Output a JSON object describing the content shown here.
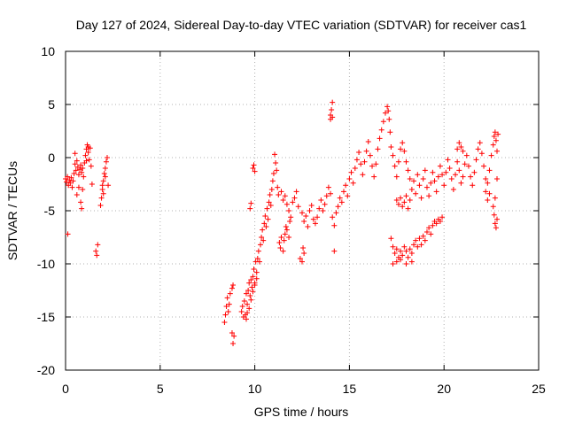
{
  "chart_data": {
    "type": "scatter",
    "title": "Day 127 of 2024, Sidereal Day-to-day VTEC variation (SDTVAR) for receiver cas1",
    "xlabel": "GPS time / hours",
    "ylabel": "SDTVAR / TECUs",
    "xlim": [
      0,
      25
    ],
    "ylim": [
      -20,
      10
    ],
    "xticks": [
      0,
      5,
      10,
      15,
      20,
      25
    ],
    "yticks": [
      -20,
      -15,
      -10,
      -5,
      0,
      5,
      10
    ],
    "grid": true,
    "marker": "+",
    "color": "#ff0000",
    "series": [
      {
        "name": "SDTVAR",
        "points": [
          [
            0.0,
            -2.0
          ],
          [
            0.05,
            -2.3
          ],
          [
            0.1,
            -1.8
          ],
          [
            0.15,
            -2.6
          ],
          [
            0.2,
            -2.1
          ],
          [
            0.25,
            -2.4
          ],
          [
            0.3,
            -1.9
          ],
          [
            0.35,
            -2.8
          ],
          [
            0.4,
            -2.2
          ],
          [
            0.45,
            -1.5
          ],
          [
            0.5,
            -0.6
          ],
          [
            0.55,
            -1.2
          ],
          [
            0.6,
            -0.3
          ],
          [
            0.65,
            -0.9
          ],
          [
            0.7,
            -1.6
          ],
          [
            0.75,
            -1.1
          ],
          [
            0.8,
            -0.7
          ],
          [
            0.85,
            -1.4
          ],
          [
            0.9,
            -1.0
          ],
          [
            0.95,
            -1.8
          ],
          [
            0.12,
            -7.2
          ],
          [
            0.5,
            0.4
          ],
          [
            0.6,
            -3.5
          ],
          [
            0.7,
            -2.8
          ],
          [
            0.8,
            -4.2
          ],
          [
            0.85,
            -4.8
          ],
          [
            0.9,
            -3.0
          ],
          [
            1.0,
            -0.5
          ],
          [
            1.05,
            0.2
          ],
          [
            1.1,
            0.8
          ],
          [
            1.15,
            1.2
          ],
          [
            1.2,
            0.5
          ],
          [
            1.25,
            -0.2
          ],
          [
            1.3,
            0.9
          ],
          [
            1.35,
            -0.8
          ],
          [
            1.4,
            -2.5
          ],
          [
            1.2,
            1.0
          ],
          [
            1.1,
            -0.3
          ],
          [
            1.6,
            -8.8
          ],
          [
            1.65,
            -9.2
          ],
          [
            1.7,
            -8.2
          ],
          [
            1.85,
            -4.5
          ],
          [
            1.9,
            -3.8
          ],
          [
            1.95,
            -3.0
          ],
          [
            2.0,
            -2.2
          ],
          [
            2.05,
            -1.5
          ],
          [
            2.1,
            -1.0
          ],
          [
            2.15,
            -0.4
          ],
          [
            2.2,
            0.0
          ],
          [
            2.25,
            -2.6
          ],
          [
            2.0,
            -3.4
          ],
          [
            1.95,
            -2.6
          ],
          [
            2.1,
            -1.8
          ],
          [
            8.4,
            -15.5
          ],
          [
            8.45,
            -14.8
          ],
          [
            8.5,
            -14.0
          ],
          [
            8.55,
            -13.2
          ],
          [
            8.6,
            -14.5
          ],
          [
            8.65,
            -13.8
          ],
          [
            8.7,
            -12.8
          ],
          [
            8.8,
            -16.5
          ],
          [
            8.85,
            -17.5
          ],
          [
            8.9,
            -16.8
          ],
          [
            8.8,
            -12.3
          ],
          [
            8.85,
            -12.0
          ],
          [
            9.3,
            -14.5
          ],
          [
            9.35,
            -14.0
          ],
          [
            9.4,
            -15.0
          ],
          [
            9.45,
            -13.5
          ],
          [
            9.5,
            -14.8
          ],
          [
            9.55,
            -12.8
          ],
          [
            9.6,
            -13.8
          ],
          [
            9.65,
            -12.5
          ],
          [
            9.7,
            -11.8
          ],
          [
            9.75,
            -13.0
          ],
          [
            9.8,
            -11.5
          ],
          [
            9.85,
            -12.2
          ],
          [
            9.9,
            -11.2
          ],
          [
            9.95,
            -10.5
          ],
          [
            10.0,
            -11.8
          ],
          [
            10.05,
            -9.8
          ],
          [
            10.1,
            -10.8
          ],
          [
            10.15,
            -9.5
          ],
          [
            10.2,
            -8.8
          ],
          [
            10.25,
            -9.8
          ],
          [
            9.55,
            -15.2
          ],
          [
            9.6,
            -14.6
          ],
          [
            9.7,
            -14.2
          ],
          [
            9.8,
            -13.4
          ],
          [
            9.9,
            -12.6
          ],
          [
            10.0,
            -12.0
          ],
          [
            10.1,
            -11.4
          ],
          [
            9.9,
            -1.0
          ],
          [
            9.95,
            -0.7
          ],
          [
            10.0,
            -1.3
          ],
          [
            9.8,
            -4.3
          ],
          [
            9.75,
            -4.8
          ],
          [
            10.3,
            -8.2
          ],
          [
            10.35,
            -7.5
          ],
          [
            10.4,
            -6.8
          ],
          [
            10.45,
            -7.8
          ],
          [
            10.5,
            -6.2
          ],
          [
            10.55,
            -5.5
          ],
          [
            10.6,
            -6.5
          ],
          [
            10.65,
            -4.8
          ],
          [
            10.7,
            -5.8
          ],
          [
            10.75,
            -4.2
          ],
          [
            10.8,
            -3.5
          ],
          [
            10.85,
            -4.5
          ],
          [
            10.9,
            -3.0
          ],
          [
            10.95,
            -2.2
          ],
          [
            11.0,
            -1.5
          ],
          [
            11.05,
            0.3
          ],
          [
            11.1,
            -0.5
          ],
          [
            11.15,
            -1.2
          ],
          [
            11.2,
            -2.8
          ],
          [
            11.25,
            -3.5
          ],
          [
            11.3,
            -8.0
          ],
          [
            11.35,
            -8.5
          ],
          [
            11.4,
            -7.5
          ],
          [
            11.5,
            -8.8
          ],
          [
            11.55,
            -7.8
          ],
          [
            11.6,
            -7.2
          ],
          [
            11.65,
            -6.5
          ],
          [
            11.7,
            -6.8
          ],
          [
            11.8,
            -7.5
          ],
          [
            11.85,
            -6.0
          ],
          [
            11.4,
            -3.2
          ],
          [
            11.5,
            -4.0
          ],
          [
            11.6,
            -3.6
          ],
          [
            11.7,
            -4.4
          ],
          [
            11.8,
            -5.0
          ],
          [
            11.9,
            -5.6
          ],
          [
            12.0,
            -4.2
          ],
          [
            12.1,
            -3.8
          ],
          [
            12.2,
            -3.2
          ],
          [
            12.3,
            -4.6
          ],
          [
            12.4,
            -9.5
          ],
          [
            12.5,
            -9.8
          ],
          [
            12.6,
            -9.0
          ],
          [
            12.55,
            -8.5
          ],
          [
            12.5,
            -5.2
          ],
          [
            12.6,
            -6.0
          ],
          [
            12.7,
            -5.5
          ],
          [
            12.8,
            -6.5
          ],
          [
            12.9,
            -5.0
          ],
          [
            13.0,
            -4.5
          ],
          [
            13.1,
            -5.8
          ],
          [
            13.2,
            -6.2
          ],
          [
            13.3,
            -5.6
          ],
          [
            13.4,
            -4.8
          ],
          [
            13.5,
            -4.0
          ],
          [
            13.6,
            -5.0
          ],
          [
            13.7,
            -4.4
          ],
          [
            13.8,
            -3.6
          ],
          [
            13.9,
            -2.8
          ],
          [
            14.0,
            -3.4
          ],
          [
            14.1,
            -5.6
          ],
          [
            14.2,
            -6.4
          ],
          [
            14.3,
            -5.2
          ],
          [
            14.4,
            -4.6
          ],
          [
            14.5,
            -3.8
          ],
          [
            14.6,
            -4.2
          ],
          [
            14.7,
            -3.2
          ],
          [
            14.8,
            -2.6
          ],
          [
            14.9,
            -3.6
          ],
          [
            15.0,
            -2.0
          ],
          [
            15.1,
            -1.4
          ],
          [
            15.2,
            -2.4
          ],
          [
            15.3,
            -1.0
          ],
          [
            15.4,
            -0.2
          ],
          [
            14.0,
            4.0
          ],
          [
            14.05,
            4.5
          ],
          [
            14.1,
            5.2
          ],
          [
            14.0,
            3.6
          ],
          [
            14.1,
            3.8
          ],
          [
            14.2,
            -8.8
          ],
          [
            15.5,
            0.5
          ],
          [
            15.6,
            -0.6
          ],
          [
            15.7,
            -1.6
          ],
          [
            15.8,
            -0.4
          ],
          [
            15.9,
            0.6
          ],
          [
            16.0,
            1.5
          ],
          [
            16.1,
            0.2
          ],
          [
            16.2,
            -0.8
          ],
          [
            16.3,
            -1.8
          ],
          [
            16.4,
            -0.6
          ],
          [
            16.5,
            0.8
          ],
          [
            16.6,
            1.8
          ],
          [
            16.7,
            2.6
          ],
          [
            16.8,
            3.4
          ],
          [
            16.9,
            4.2
          ],
          [
            17.0,
            4.8
          ],
          [
            17.05,
            4.4
          ],
          [
            17.1,
            3.6
          ],
          [
            17.15,
            2.4
          ],
          [
            17.2,
            1.0
          ],
          [
            17.3,
            0.2
          ],
          [
            17.4,
            -0.8
          ],
          [
            17.5,
            -1.8
          ],
          [
            17.6,
            -0.4
          ],
          [
            17.7,
            0.8
          ],
          [
            17.8,
            1.4
          ],
          [
            17.9,
            0.6
          ],
          [
            18.0,
            -0.4
          ],
          [
            18.1,
            -1.2
          ],
          [
            18.2,
            -2.0
          ],
          [
            17.5,
            -4.0
          ],
          [
            17.6,
            -4.4
          ],
          [
            17.7,
            -3.8
          ],
          [
            17.8,
            -4.6
          ],
          [
            17.9,
            -4.2
          ],
          [
            18.0,
            -3.6
          ],
          [
            18.1,
            -4.8
          ],
          [
            18.2,
            -4.0
          ],
          [
            17.2,
            -7.6
          ],
          [
            17.3,
            -8.4
          ],
          [
            17.4,
            -9.0
          ],
          [
            17.5,
            -8.6
          ],
          [
            17.6,
            -9.4
          ],
          [
            17.7,
            -8.8
          ],
          [
            17.8,
            -9.2
          ],
          [
            17.9,
            -8.4
          ],
          [
            18.0,
            -8.8
          ],
          [
            18.1,
            -9.4
          ],
          [
            18.2,
            -8.6
          ],
          [
            18.3,
            -9.0
          ],
          [
            18.4,
            -8.2
          ],
          [
            18.5,
            -7.8
          ],
          [
            18.6,
            -8.4
          ],
          [
            18.7,
            -7.6
          ],
          [
            18.8,
            -8.2
          ],
          [
            18.9,
            -7.4
          ],
          [
            19.0,
            -7.8
          ],
          [
            19.1,
            -7.0
          ],
          [
            19.2,
            -6.6
          ],
          [
            19.3,
            -7.2
          ],
          [
            19.4,
            -6.4
          ],
          [
            19.5,
            -6.0
          ],
          [
            19.6,
            -6.2
          ],
          [
            19.7,
            -5.8
          ],
          [
            19.8,
            -6.0
          ],
          [
            19.9,
            -5.6
          ],
          [
            17.3,
            -10.0
          ],
          [
            17.5,
            -9.8
          ],
          [
            17.7,
            -9.6
          ],
          [
            18.0,
            -10.0
          ],
          [
            18.3,
            -9.8
          ],
          [
            18.3,
            -3.0
          ],
          [
            18.4,
            -2.2
          ],
          [
            18.5,
            -3.4
          ],
          [
            18.6,
            -1.6
          ],
          [
            18.7,
            -2.6
          ],
          [
            18.8,
            -3.8
          ],
          [
            18.9,
            -2.0
          ],
          [
            19.0,
            -1.2
          ],
          [
            19.1,
            -2.8
          ],
          [
            19.2,
            -3.6
          ],
          [
            19.3,
            -2.4
          ],
          [
            19.4,
            -1.4
          ],
          [
            19.5,
            -2.2
          ],
          [
            19.6,
            -3.2
          ],
          [
            19.7,
            -1.8
          ],
          [
            19.8,
            -0.8
          ],
          [
            19.9,
            -1.6
          ],
          [
            20.0,
            -2.6
          ],
          [
            20.1,
            -1.4
          ],
          [
            20.2,
            -0.2
          ],
          [
            20.3,
            -1.0
          ],
          [
            20.4,
            -2.0
          ],
          [
            20.5,
            -3.0
          ],
          [
            20.6,
            -1.6
          ],
          [
            20.7,
            -0.4
          ],
          [
            20.8,
            -1.2
          ],
          [
            20.9,
            -2.4
          ],
          [
            21.0,
            -1.8
          ],
          [
            21.1,
            -0.6
          ],
          [
            21.2,
            0.2
          ],
          [
            21.3,
            -0.8
          ],
          [
            21.4,
            -1.8
          ],
          [
            21.5,
            -2.6
          ],
          [
            21.6,
            -1.4
          ],
          [
            21.7,
            -0.2
          ],
          [
            21.8,
            0.8
          ],
          [
            21.9,
            1.4
          ],
          [
            22.0,
            0.4
          ],
          [
            22.1,
            -0.8
          ],
          [
            22.2,
            -2.0
          ],
          [
            20.7,
            0.8
          ],
          [
            20.8,
            1.4
          ],
          [
            20.9,
            1.0
          ],
          [
            21.0,
            0.6
          ],
          [
            22.2,
            -3.2
          ],
          [
            22.3,
            -4.0
          ],
          [
            22.4,
            -3.4
          ],
          [
            22.3,
            -2.4
          ],
          [
            22.4,
            -1.2
          ],
          [
            22.5,
            0.2
          ],
          [
            22.6,
            1.2
          ],
          [
            22.65,
            2.0
          ],
          [
            22.7,
            2.4
          ],
          [
            22.75,
            1.6
          ],
          [
            22.6,
            -4.6
          ],
          [
            22.65,
            -5.4
          ],
          [
            22.7,
            -6.2
          ],
          [
            22.75,
            -6.6
          ],
          [
            22.8,
            -5.8
          ],
          [
            22.7,
            -3.8
          ],
          [
            22.8,
            -2.0
          ],
          [
            22.8,
            0.6
          ],
          [
            22.85,
            2.2
          ]
        ]
      }
    ]
  }
}
